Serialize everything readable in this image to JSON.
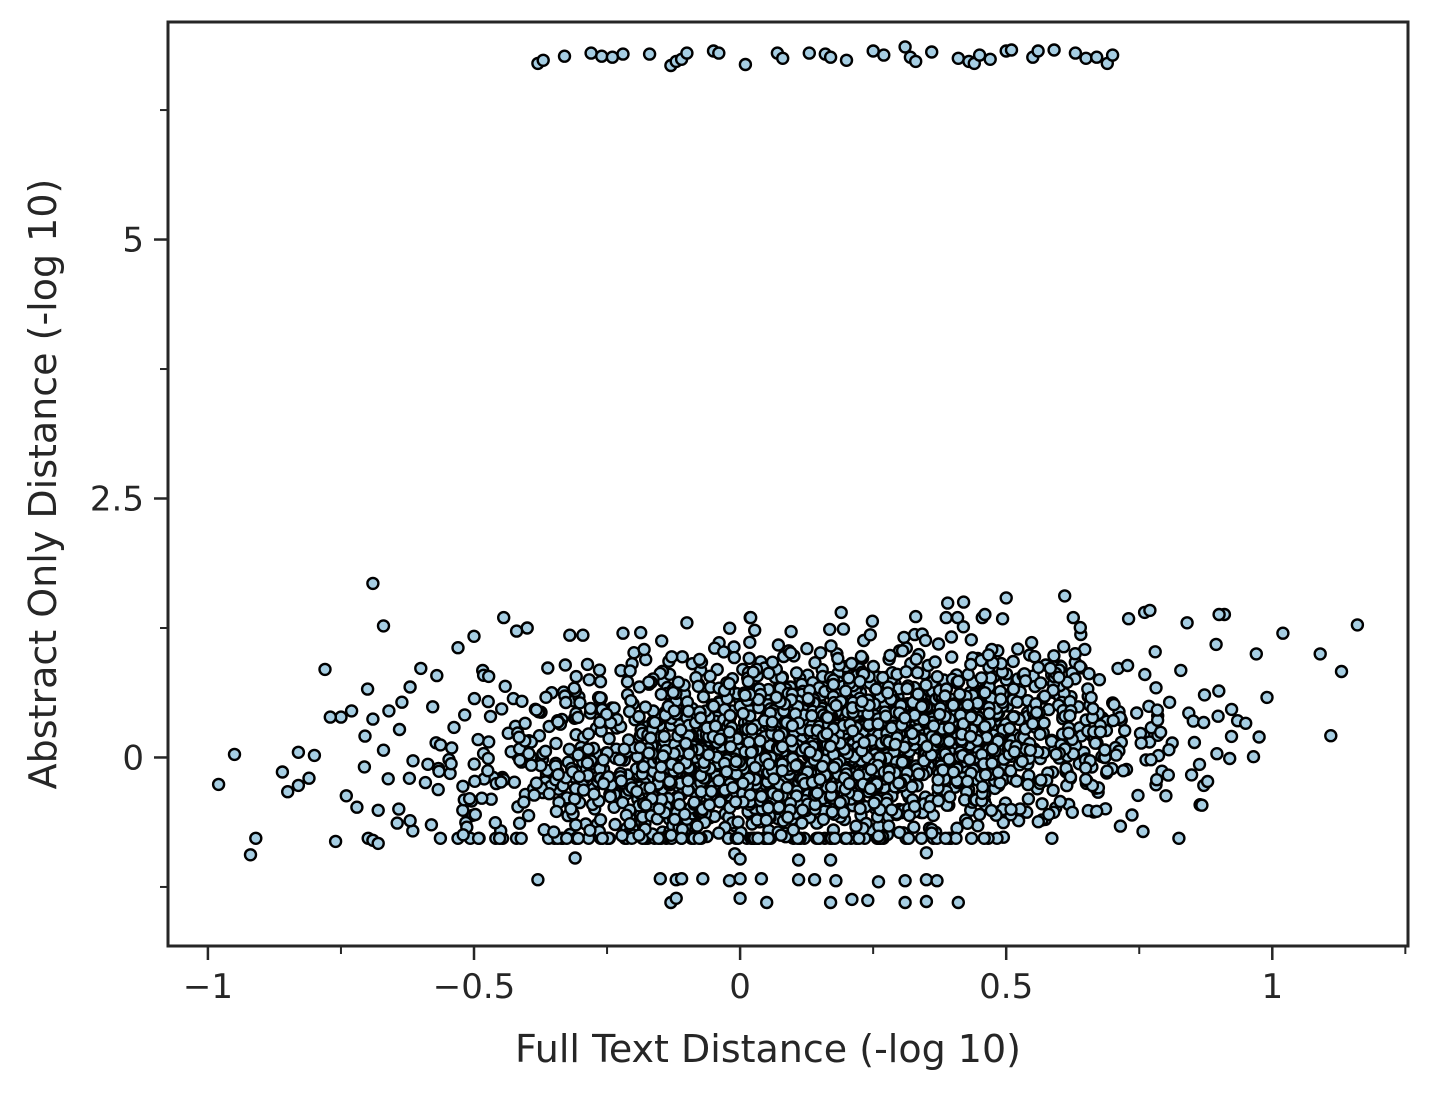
{
  "chart_data": {
    "type": "scatter",
    "title": "",
    "xlabel": "Full Text Distance (-log 10)",
    "ylabel": "Abstract Only Distance (-log 10)",
    "xlim": [
      -1.075,
      1.255
    ],
    "ylim": [
      -1.82,
      7.1
    ],
    "xticks_major": [
      {
        "value": -1,
        "label": "−1"
      },
      {
        "value": -0.5,
        "label": "−0.5"
      },
      {
        "value": 0,
        "label": "0"
      },
      {
        "value": 0.5,
        "label": "0.5"
      },
      {
        "value": 1,
        "label": "1"
      }
    ],
    "xticks_minor": [
      -0.75,
      -0.25,
      0.25,
      0.75,
      1.25
    ],
    "yticks_major": [
      {
        "value": 0,
        "label": "0"
      },
      {
        "value": 2.5,
        "label": "2.5"
      },
      {
        "value": 5,
        "label": "5"
      }
    ],
    "yticks_minor": [
      -1.25,
      1.25,
      3.75,
      6.25
    ],
    "grid": false,
    "legend": "none",
    "marker_fill": "#a6cee3",
    "marker_edge": "#000000",
    "point_count_note": "",
    "series": [
      {
        "points": [
          [
            -0.38,
            6.7
          ],
          [
            -0.37,
            6.73
          ],
          [
            -0.33,
            6.77
          ],
          [
            -0.28,
            6.8
          ],
          [
            -0.26,
            6.77
          ],
          [
            -0.24,
            6.76
          ],
          [
            -0.22,
            6.79
          ],
          [
            -0.17,
            6.79
          ],
          [
            -0.13,
            6.68
          ],
          [
            -0.12,
            6.72
          ],
          [
            -0.11,
            6.74
          ],
          [
            -0.1,
            6.8
          ],
          [
            -0.05,
            6.82
          ],
          [
            -0.04,
            6.8
          ],
          [
            0.01,
            6.69
          ],
          [
            0.07,
            6.8
          ],
          [
            0.08,
            6.75
          ],
          [
            0.13,
            6.8
          ],
          [
            0.16,
            6.79
          ],
          [
            0.17,
            6.76
          ],
          [
            0.2,
            6.73
          ],
          [
            0.25,
            6.82
          ],
          [
            0.27,
            6.78
          ],
          [
            0.31,
            6.86
          ],
          [
            0.32,
            6.76
          ],
          [
            0.33,
            6.72
          ],
          [
            0.36,
            6.81
          ],
          [
            0.41,
            6.75
          ],
          [
            0.43,
            6.72
          ],
          [
            0.44,
            6.7
          ],
          [
            0.45,
            6.78
          ],
          [
            0.47,
            6.74
          ],
          [
            0.5,
            6.82
          ],
          [
            0.51,
            6.83
          ],
          [
            0.55,
            6.76
          ],
          [
            0.56,
            6.82
          ],
          [
            0.59,
            6.83
          ],
          [
            0.63,
            6.8
          ],
          [
            0.65,
            6.75
          ],
          [
            0.67,
            6.76
          ],
          [
            0.69,
            6.7
          ],
          [
            0.7,
            6.78
          ],
          [
            -0.69,
            1.68
          ],
          [
            -0.67,
            1.27
          ],
          [
            -0.78,
            0.85
          ],
          [
            -0.98,
            -0.26
          ],
          [
            -0.95,
            0.03
          ],
          [
            -0.92,
            -0.94
          ],
          [
            -0.91,
            -0.78
          ],
          [
            -0.76,
            -0.81
          ],
          [
            -0.69,
            -0.8
          ],
          [
            -0.68,
            -0.83
          ],
          [
            -0.86,
            -0.14
          ],
          [
            -0.85,
            -0.33
          ],
          [
            -0.83,
            0.05
          ],
          [
            -0.38,
            -1.18
          ],
          [
            -0.31,
            -0.97
          ],
          [
            -0.15,
            -1.17
          ],
          [
            -0.13,
            -1.4
          ],
          [
            -0.12,
            -1.36
          ],
          [
            -0.12,
            -1.18
          ],
          [
            -0.11,
            -1.17
          ],
          [
            -0.07,
            -1.17
          ],
          [
            -0.02,
            -1.19
          ],
          [
            -0.01,
            -0.93
          ],
          [
            0,
            -0.98
          ],
          [
            0.0,
            -1.17
          ],
          [
            0.0,
            -1.36
          ],
          [
            0.04,
            -1.17
          ],
          [
            0.05,
            -1.4
          ],
          [
            0.11,
            -0.99
          ],
          [
            0.11,
            -1.18
          ],
          [
            0.14,
            -1.18
          ],
          [
            0.17,
            -0.99
          ],
          [
            0.17,
            -1.4
          ],
          [
            0.18,
            -1.19
          ],
          [
            0.21,
            -1.37
          ],
          [
            0.24,
            -1.38
          ],
          [
            0.26,
            -1.2
          ],
          [
            0.31,
            -1.19
          ],
          [
            0.31,
            -1.4
          ],
          [
            0.35,
            -0.92
          ],
          [
            0.35,
            -1.18
          ],
          [
            0.35,
            -1.39
          ],
          [
            0.37,
            -1.19
          ],
          [
            0.41,
            -1.4
          ],
          [
            0.61,
            1.56
          ],
          [
            0.5,
            1.54
          ],
          [
            0.39,
            1.49
          ],
          [
            0.42,
            1.5
          ],
          [
            0.76,
            1.4
          ],
          [
            0.91,
            1.38
          ],
          [
            1.02,
            1.2
          ],
          [
            1.16,
            1.28
          ],
          [
            1.09,
            1.0
          ],
          [
            1.13,
            0.83
          ],
          [
            1.11,
            0.21
          ],
          [
            0.99,
            0.58
          ],
          [
            0.97,
            1.0
          ],
          [
            0.95,
            0.33
          ],
          [
            0.92,
            -0.01
          ],
          [
            0.9,
            1.38
          ],
          [
            0.84,
            1.3
          ],
          [
            0.8,
            -0.37
          ],
          [
            0.78,
            1.02
          ],
          [
            0.77,
            1.42
          ],
          [
            0.73,
            1.34
          ],
          [
            0.67,
            -0.52
          ],
          [
            0.58,
            -0.55
          ],
          [
            0.46,
            1.38
          ],
          [
            0.33,
            1.36
          ],
          [
            0.19,
            1.4
          ],
          [
            0.02,
            1.35
          ],
          [
            -0.1,
            1.3
          ],
          [
            -0.22,
            1.2
          ],
          [
            -0.32,
            1.18
          ],
          [
            -0.4,
            1.25
          ],
          [
            -0.42,
            1.22
          ],
          [
            -0.5,
            1.17
          ],
          [
            -0.53,
            1.06
          ],
          [
            -0.57,
            0.79
          ],
          [
            -0.6,
            0.86
          ],
          [
            -0.62,
            0.68
          ],
          [
            -0.64,
            0.27
          ],
          [
            -0.66,
            0.45
          ],
          [
            -0.67,
            0.07
          ],
          [
            -0.69,
            0.37
          ],
          [
            -0.7,
            0.66
          ],
          [
            -0.73,
            0.45
          ],
          [
            -0.75,
            0.39
          ],
          [
            -0.77,
            0.39
          ],
          [
            -0.8,
            0.02
          ],
          [
            -0.81,
            -0.2
          ],
          [
            -0.83,
            -0.27
          ],
          [
            -0.74,
            -0.37
          ],
          [
            -0.72,
            -0.48
          ],
          [
            -0.68,
            -0.51
          ],
          [
            -0.62,
            -0.61
          ],
          [
            -0.58,
            -0.65
          ],
          [
            -0.46,
            -0.63
          ],
          [
            -0.35,
            -0.72
          ],
          [
            -0.19,
            -0.75
          ],
          [
            -0.04,
            -0.73
          ],
          [
            0.1,
            -0.7
          ],
          [
            0.26,
            -0.76
          ],
          [
            0.36,
            -0.73
          ],
          [
            0.45,
            -0.55
          ]
        ]
      }
    ]
  }
}
